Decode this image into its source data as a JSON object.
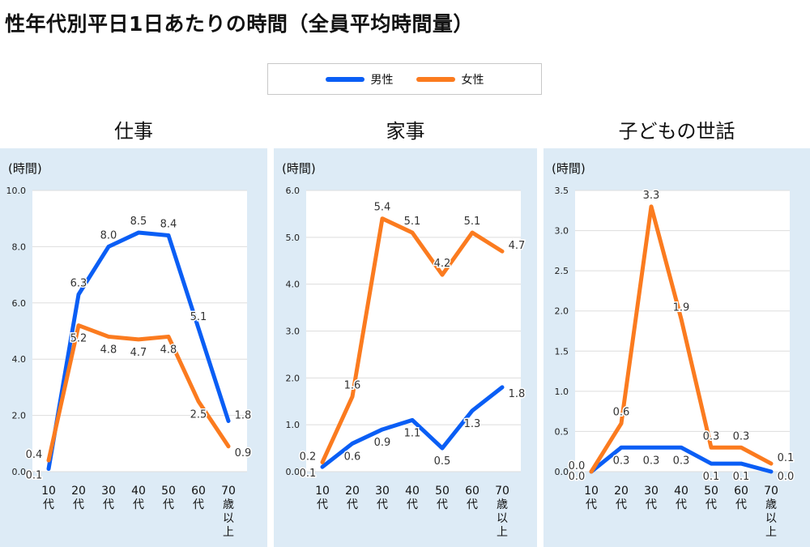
{
  "title": "性年代別平日1日あたりの時間（全員平均時間量）",
  "legend": {
    "male": "男性",
    "female": "女性"
  },
  "colors": {
    "male": "#0a5ef5",
    "female": "#fb7b1f",
    "panel_bg": "#ddebf6",
    "grid": "#dddddd"
  },
  "chart_data": [
    {
      "type": "line",
      "title": "仕事",
      "ylabel": "(時間)",
      "ylim": [
        0,
        10
      ],
      "yticks": [
        "0.0",
        "2.0",
        "4.0",
        "6.0",
        "8.0",
        "10.0"
      ],
      "categories": [
        "10代",
        "20代",
        "30代",
        "40代",
        "50代",
        "60代",
        "70歳以上"
      ],
      "grid": true,
      "series": [
        {
          "name": "男性",
          "values": [
            0.1,
            6.3,
            8.0,
            8.5,
            8.4,
            5.1,
            1.8
          ]
        },
        {
          "name": "女性",
          "values": [
            0.4,
            5.2,
            4.8,
            4.7,
            4.8,
            2.5,
            0.9
          ]
        }
      ]
    },
    {
      "type": "line",
      "title": "家事",
      "ylabel": "(時間)",
      "ylim": [
        0,
        6
      ],
      "yticks": [
        "0.0",
        "1.0",
        "2.0",
        "3.0",
        "4.0",
        "5.0",
        "6.0"
      ],
      "categories": [
        "10代",
        "20代",
        "30代",
        "40代",
        "50代",
        "60代",
        "70歳以上"
      ],
      "grid": true,
      "series": [
        {
          "name": "男性",
          "values": [
            0.1,
            0.6,
            0.9,
            1.1,
            0.5,
            1.3,
            1.8
          ]
        },
        {
          "name": "女性",
          "values": [
            0.2,
            1.6,
            5.4,
            5.1,
            4.2,
            5.1,
            4.7
          ]
        }
      ]
    },
    {
      "type": "line",
      "title": "子どもの世話",
      "ylabel": "(時間)",
      "ylim": [
        0,
        3.5
      ],
      "yticks": [
        "0.0",
        "0.5",
        "1.0",
        "1.5",
        "2.0",
        "2.5",
        "3.0",
        "3.5"
      ],
      "categories": [
        "10代",
        "20代",
        "30代",
        "40代",
        "50代",
        "60代",
        "70歳以上"
      ],
      "grid": true,
      "series": [
        {
          "name": "男性",
          "values": [
            0.0,
            0.3,
            0.3,
            0.3,
            0.1,
            0.1,
            0.0
          ]
        },
        {
          "name": "女性",
          "values": [
            0.0,
            0.6,
            3.3,
            1.9,
            0.3,
            0.3,
            0.1
          ]
        }
      ]
    }
  ]
}
